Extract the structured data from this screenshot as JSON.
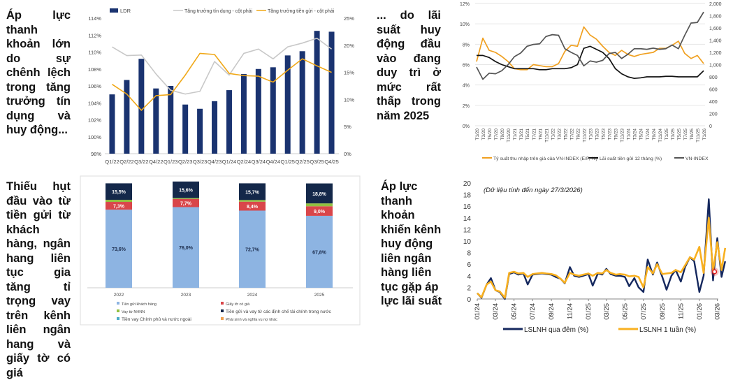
{
  "texts": {
    "t1": "Áp lực thanh khoản lớn do sự chênh lệch trong tăng trưởng tín dụng và huy động...",
    "t2": "Thiếu hụt đầu vào từ tiền gửi từ khách hàng, ngân hang liên tục gia tăng tỉ trọng vay trên kênh liên ngân hang và giấy tờ có giá",
    "t3": "... do lãi suất huy động đầu vào đang duy trì ở mức rất thấp trong năm 2025",
    "t4": "Áp lực thanh khoản khiến kênh huy động liên ngân hàng liên tục gặp áp lực lãi suất"
  },
  "chart_data": [
    {
      "type": "bar+line",
      "categories": [
        "Q1/22",
        "Q2/22",
        "Q3/22",
        "Q4/22",
        "Q1/23",
        "Q2/23",
        "Q3/23",
        "Q4/23",
        "Q1/24",
        "Q2/24",
        "Q3/24",
        "Q4/24",
        "Q1/25",
        "Q2/25",
        "Q3/25",
        "Q4/25"
      ],
      "series": [
        {
          "name": "LDR",
          "axis": "left",
          "kind": "bar",
          "color": "#1a3370",
          "values": [
            105.0,
            106.7,
            109.2,
            105.7,
            106.0,
            103.8,
            103.3,
            104.2,
            105.5,
            107.4,
            108.0,
            108.2,
            109.6,
            110.1,
            112.5,
            112.4
          ]
        },
        {
          "name": "Tăng trưởng tín dụng - cột phải",
          "axis": "right",
          "kind": "line",
          "color": "#c8c8c8",
          "values": [
            19.7,
            18.1,
            18.2,
            14.7,
            11.7,
            11.0,
            11.5,
            17.0,
            14.5,
            18.5,
            19.3,
            17.5,
            19.7,
            20.4,
            21.3,
            19.3
          ]
        },
        {
          "name": "Tăng trưởng tiền gửi - cột phải",
          "axis": "right",
          "kind": "line",
          "color": "#f0a818",
          "values": [
            12.8,
            11.0,
            8.0,
            10.7,
            10.9,
            14.5,
            18.5,
            18.3,
            14.8,
            14.4,
            14.3,
            13.2,
            15.4,
            17.5,
            16.2,
            15.0
          ]
        }
      ],
      "ylim_left": [
        98,
        114
      ],
      "yticks_left": [
        "98%",
        "100%",
        "102%",
        "104%",
        "106%",
        "108%",
        "110%",
        "112%",
        "114%"
      ],
      "ylim_right": [
        0,
        25
      ],
      "yticks_right": [
        "0%",
        "5%",
        "10%",
        "15%",
        "20%",
        "25%"
      ],
      "legend": "top"
    },
    {
      "type": "line",
      "x": [
        "T1/20",
        "T3/20",
        "T5/20",
        "T7/20",
        "T9/20",
        "T11/20",
        "T1/21",
        "T3/21",
        "T5/21",
        "T7/21",
        "T9/21",
        "T11/21",
        "T1/22",
        "T3/22",
        "T5/22",
        "T7/22",
        "T9/22",
        "T11/22",
        "T1/23",
        "T3/23",
        "T5/23",
        "T7/23",
        "T9/23",
        "T11/23",
        "T1/24",
        "T3/24",
        "T5/24",
        "T7/24",
        "T9/24",
        "T11/24",
        "T1/25",
        "T3/25",
        "T5/25",
        "T7/25",
        "T9/25",
        "T11/25",
        "T1/26"
      ],
      "series": [
        {
          "name": "Tỷ suất thu nhập trên giá của VN-INDEX (E/P, %)",
          "axis": "left",
          "color": "#f0a020",
          "values": [
            6.3,
            8.6,
            7.4,
            7.2,
            6.8,
            6.3,
            5.6,
            5.5,
            5.5,
            6.0,
            5.9,
            5.8,
            5.8,
            6.1,
            7.3,
            7.9,
            7.8,
            9.7,
            8.9,
            8.5,
            7.8,
            7.2,
            6.9,
            7.4,
            7.0,
            6.8,
            7.0,
            7.1,
            7.2,
            7.6,
            7.6,
            7.9,
            8.3,
            7.1,
            6.6,
            6.9,
            6.1
          ]
        },
        {
          "name": "Lãi suất tiền gửi 12 tháng (%)",
          "axis": "left",
          "color": "#111111",
          "values": [
            6.9,
            6.9,
            6.7,
            6.3,
            6.0,
            5.8,
            5.6,
            5.6,
            5.6,
            5.6,
            5.5,
            5.5,
            5.6,
            5.6,
            5.6,
            5.7,
            6.0,
            7.6,
            7.8,
            7.5,
            7.2,
            6.6,
            5.6,
            5.1,
            4.8,
            4.65,
            4.7,
            4.8,
            4.8,
            4.8,
            4.85,
            4.85,
            4.8,
            4.8,
            4.8,
            4.8,
            5.4
          ]
        },
        {
          "name": "VN-INDEX",
          "axis": "right",
          "color": "#555555",
          "values": [
            960,
            760,
            860,
            850,
            900,
            1000,
            1130,
            1190,
            1300,
            1330,
            1340,
            1460,
            1490,
            1480,
            1260,
            1200,
            1150,
            980,
            1060,
            1040,
            1070,
            1180,
            1200,
            1100,
            1170,
            1260,
            1260,
            1250,
            1270,
            1250,
            1260,
            1320,
            1260,
            1480,
            1680,
            1690,
            1860
          ]
        }
      ],
      "ylim_left": [
        0,
        12
      ],
      "yticks_left": [
        "0%",
        "2%",
        "4%",
        "6%",
        "8%",
        "10%",
        "12%"
      ],
      "ylim_right": [
        0,
        2000
      ],
      "yticks_right": [
        "0",
        "200",
        "400",
        "600",
        "800",
        "1,000",
        "1,200",
        "1,400",
        "1,600",
        "1,800",
        "2,000"
      ],
      "legend": "bottom"
    },
    {
      "type": "stacked-bar",
      "categories": [
        "2022",
        "2023",
        "2024",
        "2025"
      ],
      "series": [
        {
          "name": "Tiền gửi khách hàng",
          "color": "#8db4e2",
          "values": [
            73.6,
            76.0,
            72.7,
            67.8
          ],
          "labels": [
            "73,6%",
            "76,0%",
            "72,7%",
            "67,8%"
          ]
        },
        {
          "name": "Giấy tờ có giá",
          "color": "#d9464a",
          "values": [
            7.3,
            7.7,
            8.4,
            9.0
          ],
          "labels": [
            "7,3%",
            "7,7%",
            "8,4%",
            "9,0%"
          ]
        },
        {
          "name": "Vay từ NHNN",
          "color": "#92c040",
          "values": [
            2.0,
            0.8,
            1.6,
            2.7
          ],
          "labels": [
            "",
            "",
            "",
            ""
          ]
        },
        {
          "name": "Tiền gửi và vay từ các định chế tài chính trong nước",
          "color": "#14284a",
          "values": [
            15.5,
            15.6,
            15.7,
            18.8
          ],
          "labels": [
            "15,5%",
            "15,6%",
            "15,7%",
            "18,8%"
          ]
        },
        {
          "name": "Tiền vay Chính phủ và nước ngoài",
          "color": "#4bacc6",
          "values": [
            0,
            0,
            0,
            0
          ],
          "labels": [
            "",
            "",
            "",
            ""
          ]
        },
        {
          "name": "Phái sinh và nghĩa vụ nợ khác",
          "color": "#f0a050",
          "values": [
            0,
            0,
            0,
            0
          ],
          "labels": [
            "",
            "",
            "",
            ""
          ]
        }
      ],
      "legend": "bottom"
    },
    {
      "type": "line",
      "subtitle": "(Dữ liệu tính đến ngày 27/3/2026)",
      "x": [
        "2024-01-01",
        "2024-01-15",
        "2024-02-01",
        "2024-02-15",
        "2024-03-01",
        "2024-03-15",
        "2024-04-01",
        "2024-04-15",
        "2024-05-01",
        "2024-05-15",
        "2024-06-01",
        "2024-06-15",
        "2024-07-01",
        "2024-07-15",
        "2024-08-01",
        "2024-08-15",
        "2024-09-01",
        "2024-09-15",
        "2024-10-01",
        "2024-10-15",
        "2024-11-01",
        "2024-11-15",
        "2024-12-01",
        "2024-12-15",
        "2025-01-01",
        "2025-01-15",
        "2025-02-01",
        "2025-02-15",
        "2025-03-01",
        "2025-03-15",
        "2025-04-01",
        "2025-04-15",
        "2025-05-01",
        "2025-05-15",
        "2025-06-01",
        "2025-06-15",
        "2025-07-01",
        "2025-07-15",
        "2025-08-01",
        "2025-08-15",
        "2025-09-01",
        "2025-09-15",
        "2025-10-01",
        "2025-10-15",
        "2025-11-01",
        "2025-11-15",
        "2025-12-01",
        "2025-12-15",
        "2026-01-01",
        "2026-01-15",
        "2026-02-01",
        "2026-02-15",
        "2026-03-01",
        "2026-03-15",
        "2026-03-27"
      ],
      "xticks": [
        "01/24",
        "03/24",
        "05/24",
        "07/24",
        "09/24",
        "11/24",
        "01/25",
        "03/25",
        "05/25",
        "07/25",
        "09/25",
        "11/25",
        "01/26",
        "03/26"
      ],
      "series": [
        {
          "name": "LSLNH qua đêm (%)",
          "color": "#15285e",
          "values": [
            1.0,
            0.2,
            2.5,
            3.6,
            1.5,
            1.2,
            0.0,
            4.3,
            4.6,
            4.2,
            4.4,
            2.5,
            4.2,
            4.3,
            4.4,
            4.3,
            4.2,
            3.8,
            3.5,
            2.7,
            5.5,
            4.0,
            3.8,
            4.0,
            4.3,
            2.3,
            4.4,
            4.2,
            5.2,
            4.3,
            4.0,
            4.0,
            3.8,
            2.2,
            3.6,
            2.0,
            1.2,
            6.8,
            4.2,
            6.3,
            3.8,
            1.6,
            4.0,
            5.0,
            3.0,
            5.5,
            7.2,
            6.5,
            1.2,
            4.0,
            17.2,
            3.2,
            10.5,
            3.8,
            6.5
          ]
        },
        {
          "name": "LSLNH 1 tuần (%)",
          "color": "#f8b020",
          "values": [
            1.0,
            0.3,
            2.5,
            3.0,
            1.5,
            1.3,
            0.2,
            4.5,
            4.7,
            4.4,
            4.5,
            3.8,
            4.3,
            4.4,
            4.5,
            4.4,
            4.3,
            4.1,
            3.5,
            2.8,
            4.5,
            4.2,
            4.0,
            4.2,
            4.4,
            4.0,
            4.5,
            4.4,
            5.0,
            4.5,
            4.2,
            4.3,
            4.2,
            3.9,
            4.0,
            3.8,
            2.0,
            5.5,
            4.4,
            6.0,
            4.3,
            4.4,
            4.5,
            5.0,
            4.6,
            5.8,
            7.2,
            6.8,
            9.0,
            4.5,
            14.0,
            4.8,
            9.8,
            5.0,
            8.8
          ]
        }
      ],
      "marker": {
        "date": "2026-02-20",
        "value": 4.7,
        "color": "#e02020"
      },
      "ylim": [
        0,
        20
      ],
      "yticks": [
        "0",
        "2",
        "4",
        "6",
        "8",
        "10",
        "12",
        "14",
        "16",
        "18",
        "20"
      ],
      "legend": "bottom"
    }
  ]
}
